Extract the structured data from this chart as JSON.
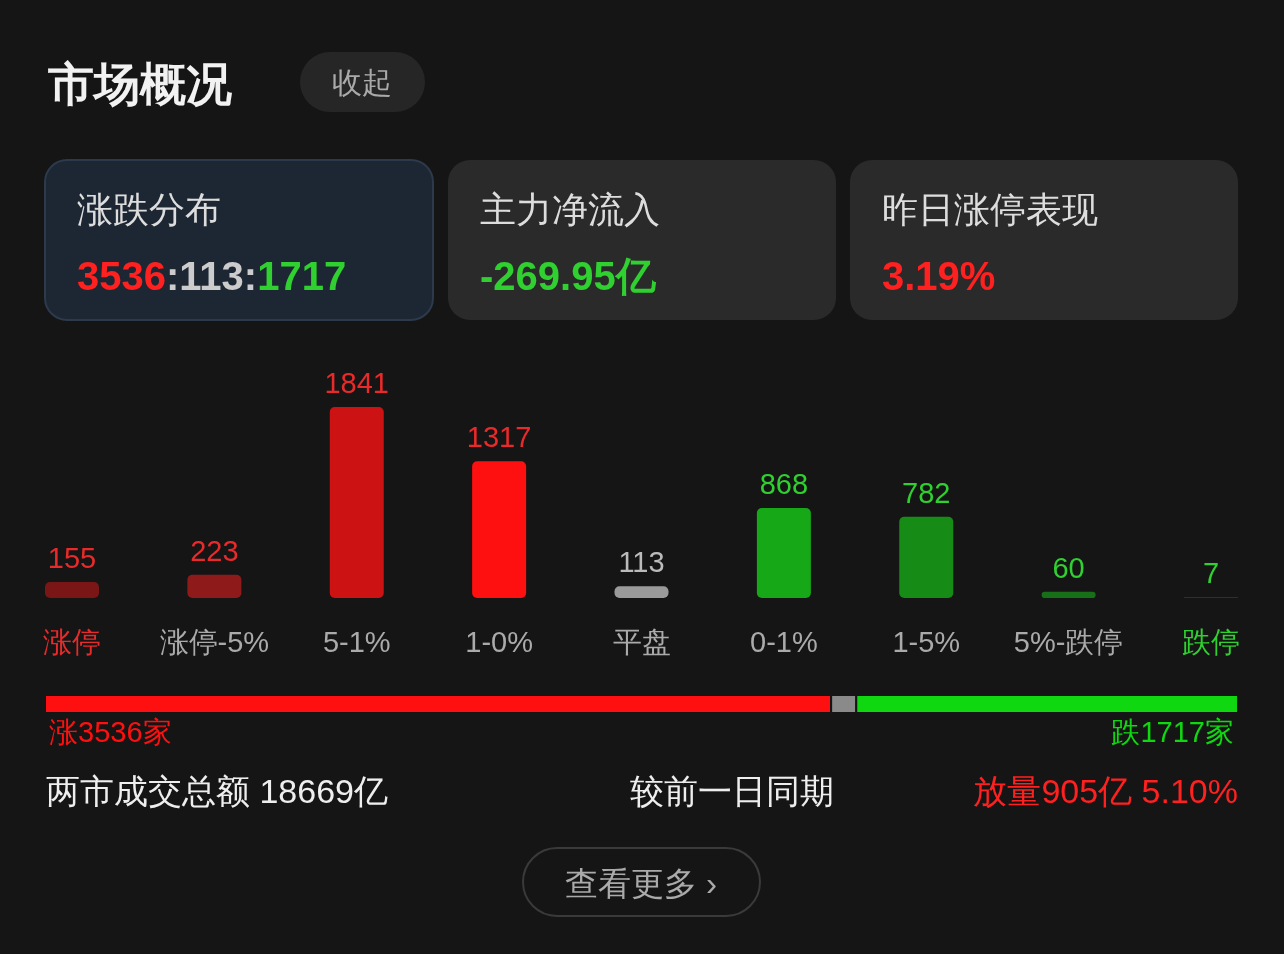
{
  "chart_data": [
    {
      "type": "other",
      "title": "市场概况",
      "annotations": [
        "收起",
        "涨跌分布",
        "3536:113:1717",
        "主力净流入",
        "-269.95亿",
        "昨日涨停表现",
        "3.19%"
      ]
    },
    {
      "type": "bar",
      "categories": [
        "涨停",
        "涨停-5%",
        "5-1%",
        "1-0%",
        "平盘",
        "0-1%",
        "1-5%",
        "5%-跌停",
        "跌停"
      ],
      "values": [
        155,
        223,
        1841,
        1317,
        113,
        868,
        782,
        60,
        7
      ],
      "colors": [
        "#7a1616",
        "#8e1a1a",
        "#cc1212",
        "#ff1010",
        "#9a9a9a",
        "#16a816",
        "#168c16",
        "#177017",
        "#1a4f1a"
      ],
      "data_labels": true
    },
    {
      "type": "bar",
      "orientation": "horizontal",
      "stacked": true,
      "categories": [
        null
      ],
      "series": [
        {
          "color": "#ff1010",
          "values": [
            3536
          ],
          "value_labels": [
            "涨3536家"
          ]
        },
        {
          "color": "#8a8a8a",
          "values": [
            113
          ],
          "value_labels": [
            null
          ]
        },
        {
          "color": "#10d810",
          "values": [
            1717
          ],
          "value_labels": [
            "跌1717家"
          ]
        }
      ],
      "annotations": [
        "两市成交总额  18669亿",
        "较前一日同期",
        "放量905亿  5.10%",
        "查看更多 ›"
      ]
    }
  ]
}
